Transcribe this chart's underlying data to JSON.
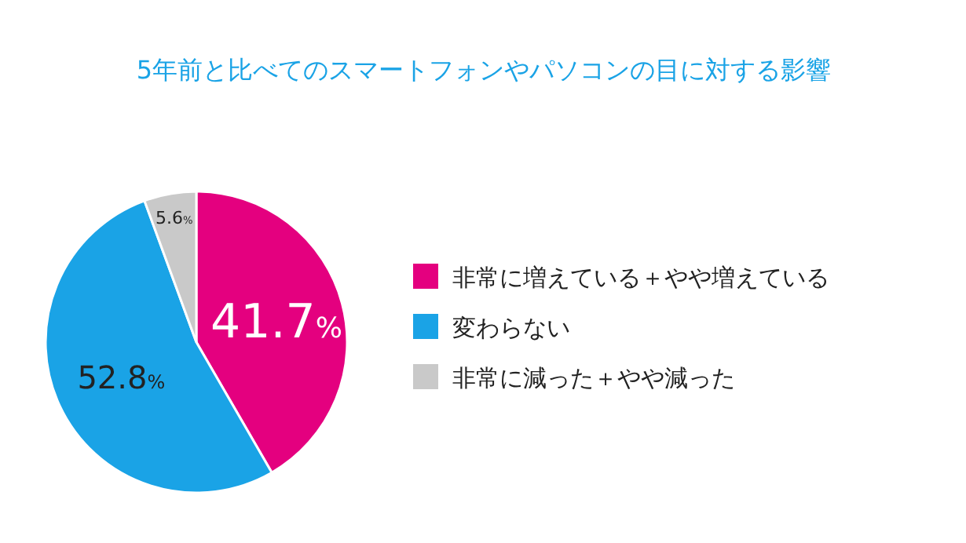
{
  "chart_data": {
    "type": "pie",
    "title": "5年前と比べてのスマートフォンやパソコンの目に対する影響",
    "categories": [
      "非常に増えている＋やや増えている",
      "変わらない",
      "非常に減った＋やや減った"
    ],
    "values": [
      41.7,
      52.8,
      5.6
    ],
    "colors": [
      "#e4007f",
      "#1aa3e6",
      "#c9c9c9"
    ],
    "value_labels": [
      "41.7%",
      "52.8%",
      "5.6%"
    ],
    "legend": "right"
  }
}
